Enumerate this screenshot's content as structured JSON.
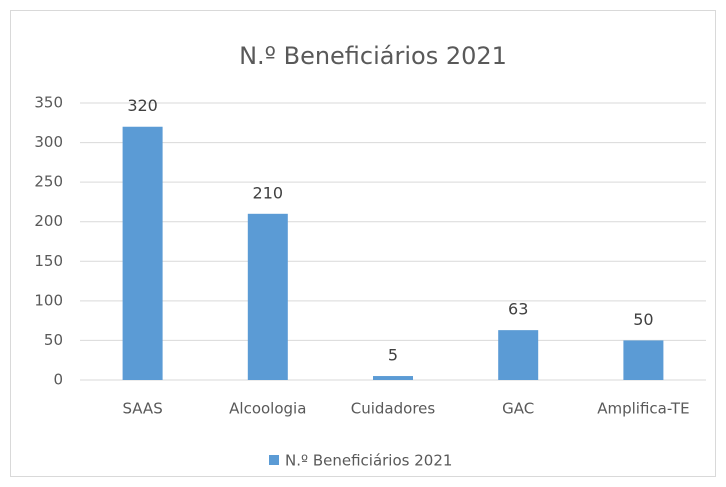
{
  "chart_data": {
    "type": "bar",
    "title": "N.º Beneficiários 2021",
    "categories": [
      "SAAS",
      "Alcoologia",
      "Cuidadores",
      "GAC",
      "Amplifica-TE"
    ],
    "series": [
      {
        "name": "N.º Beneficiários 2021",
        "color": "#5b9bd5",
        "values": [
          320,
          210,
          5,
          63,
          50
        ]
      }
    ],
    "ylim": [
      0,
      350
    ],
    "yticks": [
      0,
      50,
      100,
      150,
      200,
      250,
      300,
      350
    ],
    "grid": true,
    "legend": "bottom"
  }
}
